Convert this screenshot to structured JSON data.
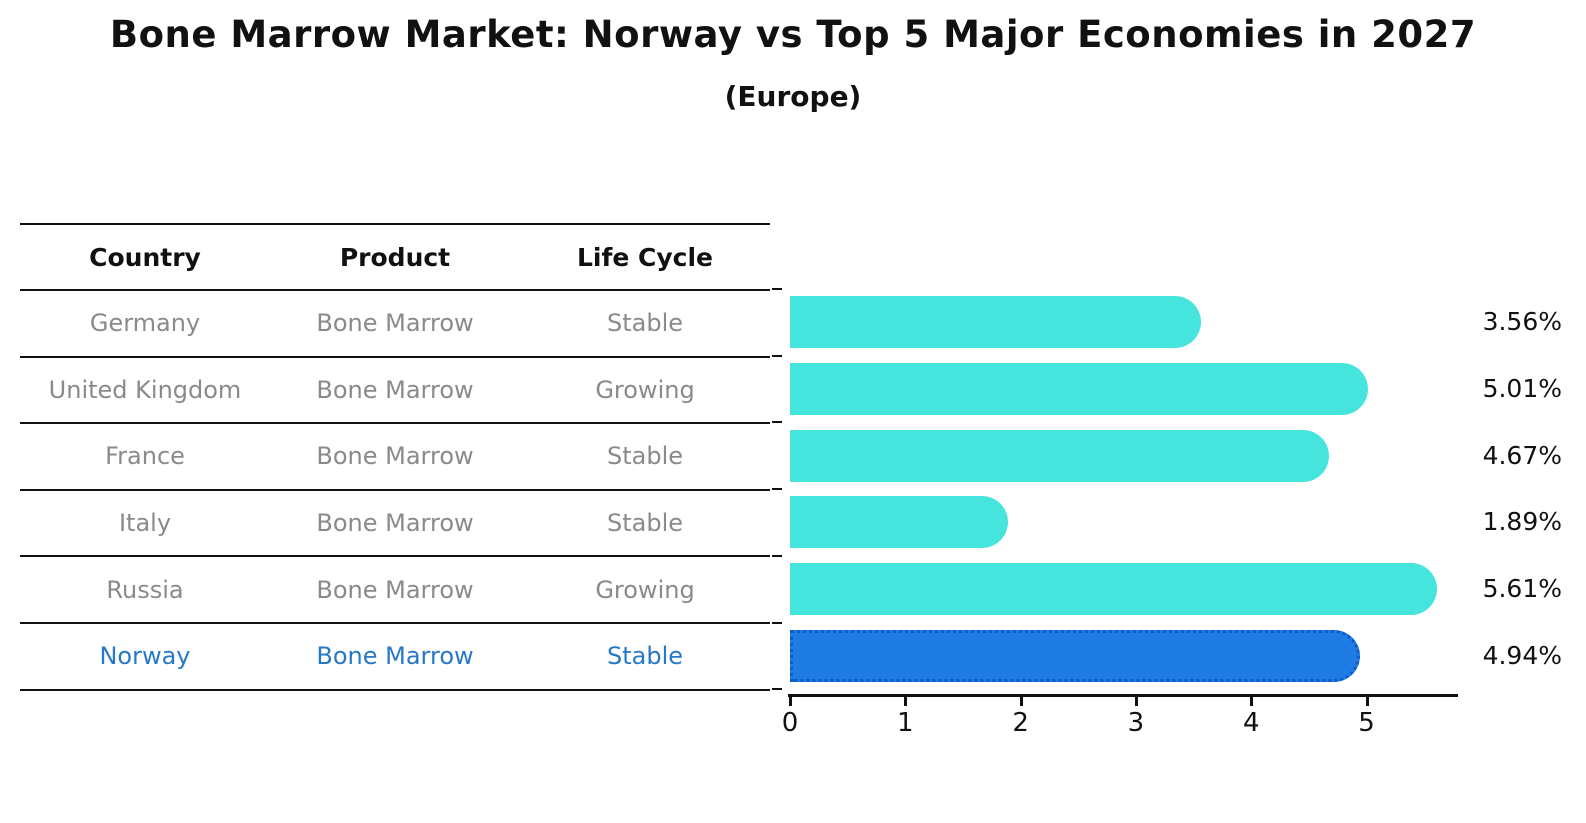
{
  "title": "Bone Marrow Market: Norway vs Top 5 Major Economies in 2027",
  "subtitle": "(Europe)",
  "table": {
    "headers": [
      "Country",
      "Product",
      "Life Cycle"
    ],
    "rows": [
      {
        "country": "Germany",
        "product": "Bone Marrow",
        "life_cycle": "Stable",
        "highlight": false
      },
      {
        "country": "United Kingdom",
        "product": "Bone Marrow",
        "life_cycle": "Growing",
        "highlight": false
      },
      {
        "country": "France",
        "product": "Bone Marrow",
        "life_cycle": "Stable",
        "highlight": false
      },
      {
        "country": "Italy",
        "product": "Bone Marrow",
        "life_cycle": "Stable",
        "highlight": false
      },
      {
        "country": "Russia",
        "product": "Bone Marrow",
        "life_cycle": "Growing",
        "highlight": false
      },
      {
        "country": "Norway",
        "product": "Bone Marrow",
        "life_cycle": "Stable",
        "highlight": true
      }
    ]
  },
  "chart_data": {
    "type": "bar",
    "orientation": "horizontal",
    "title": "Bone Marrow Market: Norway vs Top 5 Major Economies in 2027 (Europe)",
    "categories": [
      "Germany",
      "United Kingdom",
      "France",
      "Italy",
      "Russia",
      "Norway"
    ],
    "values": [
      3.56,
      5.01,
      4.67,
      1.89,
      5.61,
      4.94
    ],
    "value_labels": [
      "3.56%",
      "5.01%",
      "4.67%",
      "1.89%",
      "5.61%",
      "4.94%"
    ],
    "highlighted_category": "Norway",
    "x_ticks": [
      0,
      1,
      2,
      3,
      4,
      5
    ],
    "xlim": [
      0,
      5.81
    ],
    "xlabel": "",
    "ylabel": "",
    "grid": false,
    "legend": "none",
    "colors": {
      "bar_default": "#45E5DE",
      "bar_highlight": "#1E7CE4",
      "bar_highlight_border": "#0E5ACC",
      "highlight_text": "#2878C8",
      "row_text": "#8A8A8A",
      "axis": "#111111"
    }
  }
}
